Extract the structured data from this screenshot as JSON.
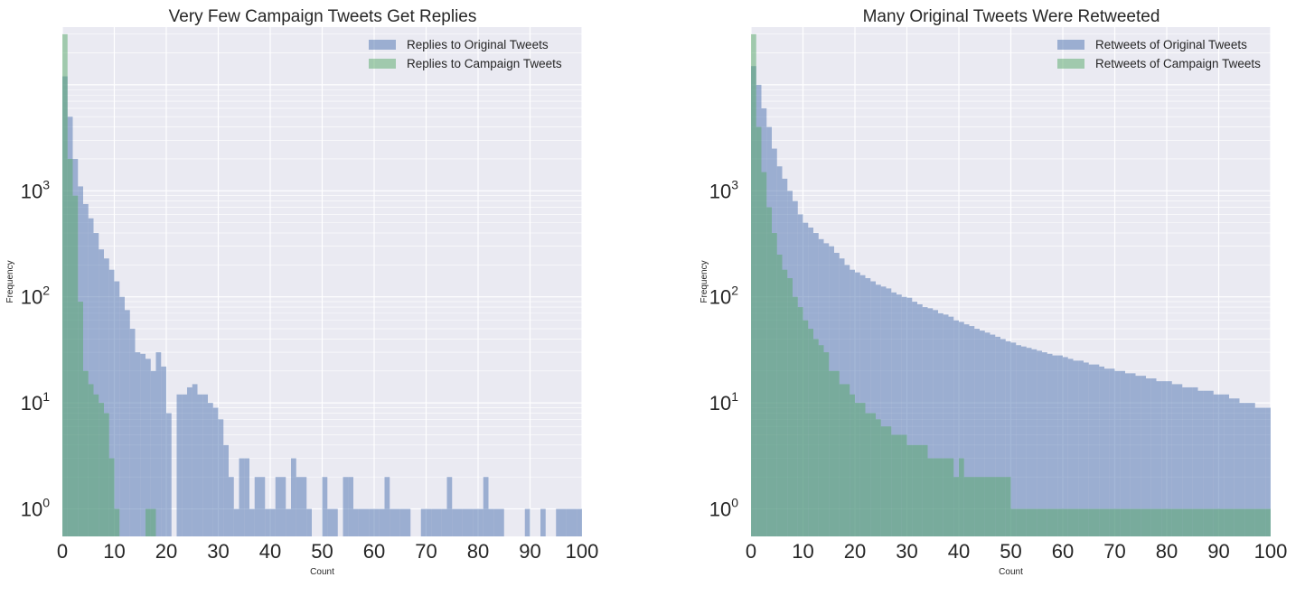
{
  "chart_data": [
    {
      "type": "histogram",
      "title": "Very Few Campaign Tweets Get Replies",
      "xlabel": "Count",
      "ylabel": "Frequency",
      "yscale": "log",
      "xlim": [
        0,
        100
      ],
      "ylim": [
        0.55,
        35000
      ],
      "xticks": [
        "0",
        "10",
        "20",
        "30",
        "40",
        "50",
        "60",
        "70",
        "80",
        "90",
        "100"
      ],
      "yticks": [
        {
          "base": "10",
          "exp": "0",
          "value": 1
        },
        {
          "base": "10",
          "exp": "1",
          "value": 10
        },
        {
          "base": "10",
          "exp": "2",
          "value": 100
        },
        {
          "base": "10",
          "exp": "3",
          "value": 1000
        }
      ],
      "legend_position": "top-right",
      "bin_width": 1,
      "series": [
        {
          "name": "Replies to Original Tweets",
          "color": "#4c72b0",
          "counts": [
            12000,
            5000,
            2000,
            1100,
            750,
            550,
            400,
            280,
            230,
            180,
            140,
            100,
            75,
            50,
            30,
            29,
            26,
            20,
            30,
            22,
            8,
            0,
            12,
            12,
            14,
            15,
            12,
            12,
            10,
            9,
            7,
            4,
            2,
            1,
            3,
            3,
            1,
            2,
            2,
            1,
            1,
            2,
            2,
            1,
            3,
            2,
            2,
            1,
            0,
            0,
            2,
            1,
            1,
            0,
            2,
            2,
            1,
            1,
            1,
            1,
            1,
            1,
            2,
            1,
            1,
            1,
            1,
            0,
            0,
            1,
            1,
            1,
            1,
            1,
            2,
            1,
            1,
            1,
            1,
            1,
            1,
            2,
            1,
            1,
            1,
            0,
            0,
            0,
            0,
            1,
            0,
            0,
            1,
            0,
            0,
            1,
            1,
            1,
            1,
            1
          ]
        },
        {
          "name": "Replies to Campaign Tweets",
          "color": "#55a868",
          "counts": [
            30000,
            2000,
            900,
            90,
            20,
            15,
            12,
            10,
            8,
            3,
            1,
            0,
            0,
            0,
            0,
            0,
            1,
            1,
            0,
            0,
            0,
            0,
            0,
            0,
            0,
            0,
            0,
            0,
            0,
            0,
            0,
            0,
            0,
            0,
            0,
            0,
            0,
            0,
            0,
            0,
            0,
            0,
            0,
            0,
            0,
            0,
            0,
            0,
            0,
            0,
            0,
            0,
            0,
            0,
            0,
            0,
            0,
            0,
            0,
            0,
            0,
            0,
            0,
            0,
            0,
            0,
            0,
            0,
            0,
            0,
            0,
            0,
            0,
            0,
            0,
            0,
            0,
            0,
            0,
            0,
            0,
            0,
            0,
            0,
            0,
            0,
            0,
            0,
            0,
            0,
            0,
            0,
            0,
            0,
            0,
            0,
            0,
            0,
            0,
            0
          ]
        }
      ]
    },
    {
      "type": "histogram",
      "title": "Many Original Tweets Were Retweeted",
      "xlabel": "Count",
      "ylabel": "Frequency",
      "yscale": "log",
      "xlim": [
        0,
        100
      ],
      "ylim": [
        0.55,
        35000
      ],
      "xticks": [
        "0",
        "10",
        "20",
        "30",
        "40",
        "50",
        "60",
        "70",
        "80",
        "90",
        "100"
      ],
      "yticks": [
        {
          "base": "10",
          "exp": "0",
          "value": 1
        },
        {
          "base": "10",
          "exp": "1",
          "value": 10
        },
        {
          "base": "10",
          "exp": "2",
          "value": 100
        },
        {
          "base": "10",
          "exp": "3",
          "value": 1000
        }
      ],
      "legend_position": "top-right",
      "bin_width": 1,
      "series": [
        {
          "name": "Retweets of Original Tweets",
          "color": "#4c72b0",
          "counts": [
            15000,
            10000,
            6000,
            4000,
            2500,
            1700,
            1300,
            1000,
            800,
            600,
            500,
            450,
            400,
            350,
            320,
            300,
            260,
            230,
            200,
            180,
            170,
            160,
            150,
            140,
            130,
            125,
            120,
            110,
            105,
            100,
            98,
            90,
            85,
            80,
            78,
            75,
            70,
            68,
            65,
            60,
            58,
            55,
            53,
            50,
            48,
            46,
            44,
            42,
            40,
            38,
            37,
            35,
            34,
            33,
            32,
            31,
            30,
            29,
            28,
            28,
            27,
            26,
            25,
            25,
            24,
            23,
            23,
            22,
            21,
            21,
            20,
            20,
            19,
            19,
            18,
            18,
            17,
            17,
            16,
            16,
            16,
            15,
            15,
            14,
            14,
            14,
            13,
            13,
            13,
            12,
            12,
            12,
            11,
            11,
            10,
            10,
            10,
            9,
            9,
            9
          ]
        },
        {
          "name": "Retweets of Campaign Tweets",
          "color": "#55a868",
          "counts": [
            30000,
            4000,
            1500,
            700,
            400,
            250,
            180,
            150,
            100,
            80,
            60,
            50,
            40,
            35,
            30,
            20,
            20,
            15,
            15,
            12,
            10,
            10,
            8,
            8,
            7,
            6,
            6,
            5,
            5,
            5,
            4,
            4,
            4,
            4,
            3,
            3,
            3,
            3,
            3,
            2,
            3,
            2,
            2,
            2,
            2,
            2,
            2,
            2,
            2,
            2,
            1,
            1,
            1,
            1,
            1,
            1,
            1,
            1,
            1,
            1,
            1,
            1,
            1,
            1,
            1,
            1,
            1,
            1,
            1,
            1,
            1,
            1,
            1,
            1,
            1,
            1,
            1,
            1,
            1,
            1,
            1,
            1,
            1,
            1,
            1,
            1,
            1,
            1,
            1,
            1,
            1,
            1,
            1,
            1,
            1,
            1,
            1,
            1,
            1,
            1
          ]
        }
      ]
    }
  ]
}
